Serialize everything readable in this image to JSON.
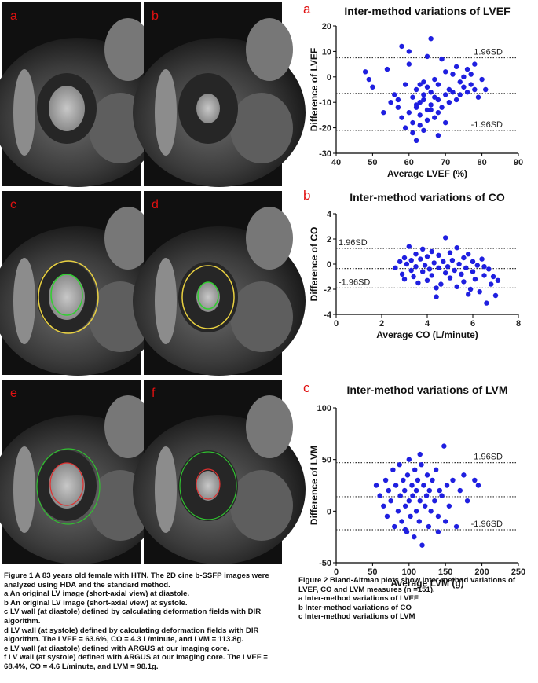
{
  "figure1": {
    "panel_labels": [
      "a",
      "b",
      "c",
      "d",
      "e",
      "f"
    ],
    "caption": [
      "Figure 1 A 83 years old female with HTN. The 2D cine b-SSFP images were analyzed using HDA and the standard method.",
      "a An original LV image (short-axial view) at diastole.",
      "b An original LV image (short-axial view) at systole.",
      "c LV wall (at diastole) defined by calculating deformation fields with DIR algorithm.",
      "d LV wall (at systole) defined by calculating deformation fields with DIR algorithm. The LVEF = 63.6%, CO = 4.3 L/minute, and LVM = 113.8g.",
      "e LV wall (at diastole) defined with ARGUS at our imaging core.",
      "f LV wall (at systole) defined with ARGUS at our imaging core. The LVEF = 68.4%, CO = 4.6 L/minute, and LVM = 98.1g."
    ]
  },
  "figure2": {
    "caption": [
      "Figure 2 Bland-Altman plots show inter-method variations of LVEF, CO and LVM measures (n =151).",
      "a Inter-method variations of LVEF",
      "b Inter-method variations of CO",
      "c Inter-method variations of LVM"
    ]
  },
  "chart_data": [
    {
      "type": "scatter",
      "panel_label": "a",
      "title": "Inter-method variations of LVEF",
      "x_label": "Average LVEF (%)",
      "y_label": "Difference of LVEF",
      "color": "#1f1fe0",
      "xlim": [
        40,
        90
      ],
      "xticks": [
        40,
        50,
        60,
        70,
        80,
        90
      ],
      "ylim": [
        -30,
        20
      ],
      "yticks": [
        -30,
        -20,
        -10,
        0,
        10,
        20
      ],
      "reference_lines": [
        {
          "value": 7.5,
          "label": "1.96SD"
        },
        {
          "value": -6.5
        },
        {
          "value": -21,
          "label": "-1.96SD"
        }
      ],
      "x": [
        48,
        49,
        50,
        53,
        54,
        55,
        56,
        57,
        58,
        58,
        59,
        59,
        60,
        60,
        61,
        61,
        61,
        62,
        62,
        62,
        63,
        63,
        63,
        64,
        64,
        64,
        65,
        65,
        65,
        65,
        66,
        66,
        66,
        67,
        67,
        67,
        68,
        68,
        68,
        69,
        69,
        70,
        70,
        70,
        71,
        71,
        72,
        72,
        73,
        73,
        74,
        74,
        75,
        75,
        76,
        76,
        77,
        77,
        78,
        78,
        79,
        80,
        81,
        60,
        62,
        64,
        66,
        68,
        57,
        63
      ],
      "values": [
        2,
        -1,
        -4,
        -14,
        3,
        -10,
        -7,
        -12,
        12,
        -16,
        -3,
        -20,
        5,
        -14,
        -8,
        -18,
        -22,
        -5,
        -12,
        -25,
        -10,
        -15,
        -19,
        -2,
        -9,
        -21,
        8,
        -4,
        -13,
        -17,
        15,
        -6,
        -11,
        -1,
        -8,
        -16,
        -3,
        -9,
        -14,
        7,
        -12,
        2,
        -7,
        -18,
        -5,
        -10,
        1,
        -6,
        4,
        -9,
        -2,
        -7,
        0,
        -4,
        3,
        -6,
        -3,
        1,
        -5,
        5,
        -8,
        -1,
        -5,
        10,
        -11,
        -7,
        -13,
        -23,
        -9,
        -3
      ]
    },
    {
      "type": "scatter",
      "panel_label": "b",
      "title": "Inter-method variations of CO",
      "x_label": "Average CO (L/minute)",
      "y_label": "Difference of CO",
      "color": "#1f1fe0",
      "xlim": [
        0,
        8
      ],
      "xticks": [
        0,
        2,
        4,
        6,
        8
      ],
      "ylim": [
        -4,
        4
      ],
      "yticks": [
        -4,
        -2,
        0,
        2,
        4
      ],
      "reference_lines": [
        {
          "value": 1.25,
          "label": "1.96SD"
        },
        {
          "value": -0.35
        },
        {
          "value": -1.9,
          "label": "-1.96SD"
        }
      ],
      "x": [
        2.6,
        2.8,
        2.9,
        3.0,
        3.0,
        3.1,
        3.2,
        3.3,
        3.3,
        3.4,
        3.5,
        3.5,
        3.6,
        3.7,
        3.8,
        3.8,
        3.9,
        4.0,
        4.0,
        4.1,
        4.2,
        4.2,
        4.3,
        4.4,
        4.5,
        4.5,
        4.6,
        4.7,
        4.8,
        4.8,
        4.9,
        5.0,
        5.0,
        5.1,
        5.2,
        5.3,
        5.3,
        5.4,
        5.5,
        5.6,
        5.6,
        5.7,
        5.8,
        5.9,
        6.0,
        6.0,
        6.1,
        6.2,
        6.3,
        6.4,
        6.5,
        6.6,
        6.7,
        6.8,
        6.9,
        7.0,
        7.1,
        4.4,
        5.8,
        6.5
      ],
      "values": [
        -0.3,
        0.2,
        -0.8,
        0.5,
        -1.2,
        0.0,
        1.4,
        -0.5,
        0.3,
        -1.0,
        0.8,
        -0.2,
        -1.5,
        0.4,
        -0.6,
        1.2,
        -0.1,
        0.6,
        -1.3,
        -0.4,
        1.0,
        -0.9,
        0.1,
        -2.6,
        0.7,
        -0.3,
        -1.6,
        0.2,
        2.1,
        -0.7,
        -0.2,
        0.9,
        -1.1,
        0.3,
        -0.5,
        1.3,
        -1.8,
        0.0,
        -0.8,
        0.5,
        -1.4,
        -0.3,
        0.8,
        -2.0,
        -0.6,
        0.2,
        -1.2,
        -0.1,
        -2.2,
        0.4,
        -0.9,
        -3.1,
        -0.4,
        -1.6,
        -1.0,
        -2.5,
        -1.3,
        -1.9,
        -2.4,
        -0.2
      ]
    },
    {
      "type": "scatter",
      "panel_label": "c",
      "title": "Inter-method variations of LVM",
      "x_label": "Average LVM (g)",
      "y_label": "Difference of LVM",
      "color": "#1f1fe0",
      "xlim": [
        0,
        250
      ],
      "xticks": [
        0,
        50,
        100,
        150,
        200,
        250
      ],
      "ylim": [
        -50,
        100
      ],
      "yticks": [
        -50,
        0,
        50,
        100
      ],
      "reference_lines": [
        {
          "value": 47,
          "label": "1.96SD"
        },
        {
          "value": 14
        },
        {
          "value": -18,
          "label": "-1.96SD"
        }
      ],
      "x": [
        55,
        60,
        65,
        68,
        70,
        72,
        75,
        78,
        80,
        82,
        85,
        87,
        88,
        90,
        92,
        94,
        95,
        97,
        98,
        100,
        100,
        102,
        104,
        105,
        107,
        108,
        110,
        110,
        112,
        114,
        115,
        117,
        118,
        120,
        122,
        124,
        125,
        127,
        128,
        130,
        132,
        135,
        137,
        140,
        142,
        145,
        148,
        150,
        152,
        155,
        160,
        165,
        170,
        175,
        180,
        190,
        195,
        95,
        115,
        140
      ],
      "values": [
        25,
        15,
        5,
        30,
        -5,
        20,
        10,
        40,
        -15,
        25,
        0,
        45,
        15,
        -10,
        30,
        20,
        5,
        -20,
        35,
        10,
        50,
        -5,
        25,
        15,
        -25,
        40,
        0,
        20,
        30,
        -10,
        10,
        45,
        -33,
        25,
        5,
        15,
        35,
        -15,
        20,
        0,
        30,
        10,
        40,
        -5,
        20,
        15,
        63,
        -10,
        25,
        5,
        30,
        -15,
        20,
        35,
        10,
        30,
        25,
        -18,
        55,
        -20
      ]
    }
  ]
}
